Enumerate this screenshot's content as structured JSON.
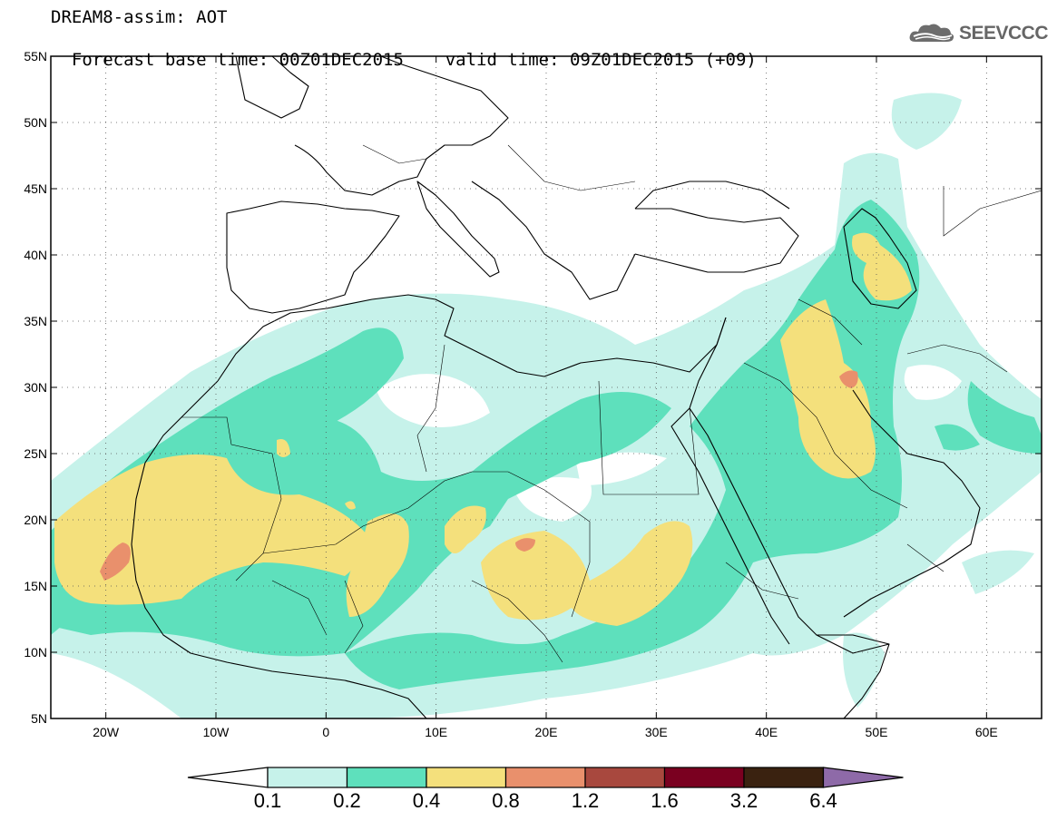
{
  "header": {
    "title": "DREAM8-assim: AOT",
    "base_time": "Forecast base time: 00Z01DEC2015",
    "valid_time": "valid time: 09Z01DEC2015 (+09)"
  },
  "logo": {
    "text": "SEEVCCC",
    "icon": "cloud-icon"
  },
  "map": {
    "lon_range": [
      -25,
      65
    ],
    "lat_range": [
      5,
      55
    ],
    "lon_ticks": [
      {
        "value": -20,
        "label": "20W"
      },
      {
        "value": -10,
        "label": "10W"
      },
      {
        "value": 0,
        "label": "0"
      },
      {
        "value": 10,
        "label": "10E"
      },
      {
        "value": 20,
        "label": "20E"
      },
      {
        "value": 30,
        "label": "30E"
      },
      {
        "value": 40,
        "label": "40E"
      },
      {
        "value": 50,
        "label": "50E"
      },
      {
        "value": 60,
        "label": "60E"
      }
    ],
    "lat_ticks": [
      {
        "value": 55,
        "label": "55N"
      },
      {
        "value": 50,
        "label": "50N"
      },
      {
        "value": 45,
        "label": "45N"
      },
      {
        "value": 40,
        "label": "40N"
      },
      {
        "value": 35,
        "label": "35N"
      },
      {
        "value": 30,
        "label": "30N"
      },
      {
        "value": 25,
        "label": "25N"
      },
      {
        "value": 20,
        "label": "20N"
      },
      {
        "value": 15,
        "label": "15N"
      },
      {
        "value": 10,
        "label": "10N"
      },
      {
        "value": 5,
        "label": "5N"
      }
    ]
  },
  "colorbar": {
    "colors": [
      "#c6f2ea",
      "#5ee0bc",
      "#f4e07c",
      "#e9906c",
      "#a8483e",
      "#7a0020",
      "#3a2210",
      "#8e6aa8"
    ],
    "boundaries": [
      "0.1",
      "0.2",
      "0.4",
      "0.8",
      "1.2",
      "1.6",
      "3.2",
      "6.4"
    ]
  },
  "colors": {
    "low": "#c6f2ea",
    "mid": "#5ee0bc",
    "high": "#f4e07c",
    "peak": "#e9906c",
    "coast": "#000000"
  }
}
